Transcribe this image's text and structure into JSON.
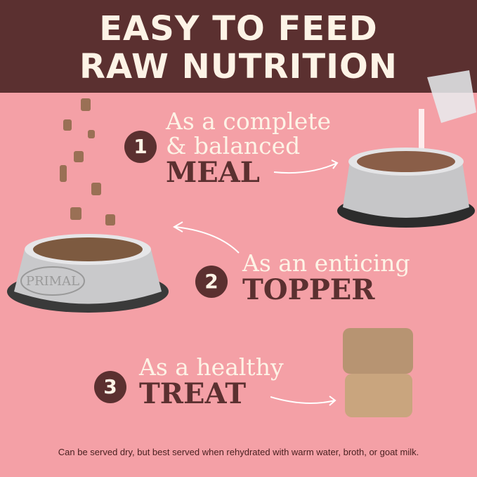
{
  "header": {
    "line1": "EASY TO FEED",
    "line2": "RAW NUTRITION"
  },
  "colors": {
    "header_bg": "#5b3030",
    "background": "#f4a0a6",
    "cream": "#fdf3e6",
    "brown": "#5b3030"
  },
  "steps": [
    {
      "number": "1",
      "lines": [
        "As a complete",
        "& balanced"
      ],
      "emphasis": "MEAL"
    },
    {
      "number": "2",
      "lines": [
        "As an enticing"
      ],
      "emphasis": "TOPPER"
    },
    {
      "number": "3",
      "lines": [
        "As a healthy"
      ],
      "emphasis": "TREAT"
    }
  ],
  "bowl_logo": "PRIMAL",
  "footer": "Can be served dry, but best served when rehydrated with warm water, broth, or goat milk."
}
